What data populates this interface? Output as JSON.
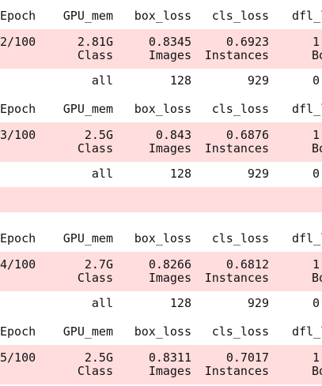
{
  "blocks": [
    {
      "header": [
        "Epoch",
        "GPU_mem",
        "box_loss",
        "cls_loss",
        "dfl_l"
      ],
      "train": [
        "2/100",
        "2.81G",
        "0.8345",
        "0.6923",
        "1"
      ],
      "val_header": [
        "Class",
        "Images",
        "Instances",
        "Bo"
      ],
      "val": [
        "all",
        "128",
        "929",
        "0"
      ]
    },
    {
      "header": [
        "Epoch",
        "GPU_mem",
        "box_loss",
        "cls_loss",
        "dfl_l"
      ],
      "train": [
        "3/100",
        "2.5G",
        "0.843",
        "0.6876",
        "1"
      ],
      "val_header": [
        "Class",
        "Images",
        "Instances",
        "Bo"
      ],
      "val": [
        "all",
        "128",
        "929",
        "0"
      ]
    },
    {
      "header": [
        "Epoch",
        "GPU_mem",
        "box_loss",
        "cls_loss",
        "dfl_l"
      ],
      "train": [
        "4/100",
        "2.7G",
        "0.8266",
        "0.6812",
        "1"
      ],
      "val_header": [
        "Class",
        "Images",
        "Instances",
        "Bo"
      ],
      "val": [
        "all",
        "128",
        "929",
        "0"
      ]
    },
    {
      "header": [
        "Epoch",
        "GPU_mem",
        "box_loss",
        "cls_loss",
        "dfl_l"
      ],
      "train": [
        "5/100",
        "2.5G",
        "0.8311",
        "0.7017",
        "1"
      ],
      "val_header": [
        "Class",
        "Images",
        "Instances",
        "Bo"
      ]
    }
  ]
}
